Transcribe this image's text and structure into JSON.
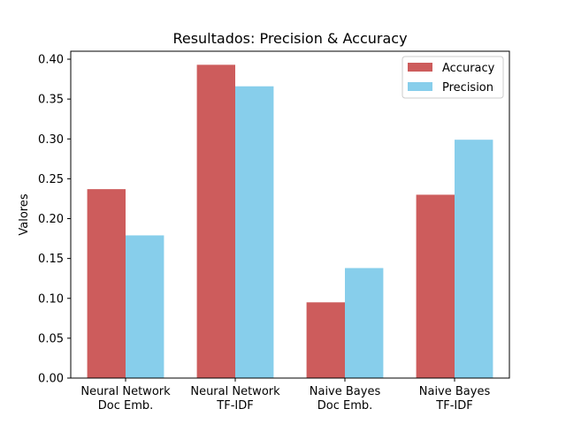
{
  "chart_data": {
    "type": "bar",
    "title": "Resultados: Precision & Accuracy",
    "xlabel": "",
    "ylabel": "Valores",
    "ylim": [
      0,
      0.41
    ],
    "yticks": [
      0.0,
      0.05,
      0.1,
      0.15,
      0.2,
      0.25,
      0.3,
      0.35,
      0.4
    ],
    "ytick_labels": [
      "0.00",
      "0.05",
      "0.10",
      "0.15",
      "0.20",
      "0.25",
      "0.30",
      "0.35",
      "0.40"
    ],
    "categories": [
      [
        "Neural Network",
        "Doc Emb."
      ],
      [
        "Neural Network",
        "TF-IDF"
      ],
      [
        "Naive Bayes",
        "Doc Emb."
      ],
      [
        "Naive Bayes",
        "TF-IDF"
      ]
    ],
    "series": [
      {
        "name": "Accuracy",
        "color": "#cd5c5c",
        "values": [
          0.237,
          0.393,
          0.095,
          0.23
        ]
      },
      {
        "name": "Precision",
        "color": "#87ceeb",
        "values": [
          0.179,
          0.366,
          0.138,
          0.299
        ]
      }
    ],
    "grid": false,
    "legend_position": "top-right"
  }
}
